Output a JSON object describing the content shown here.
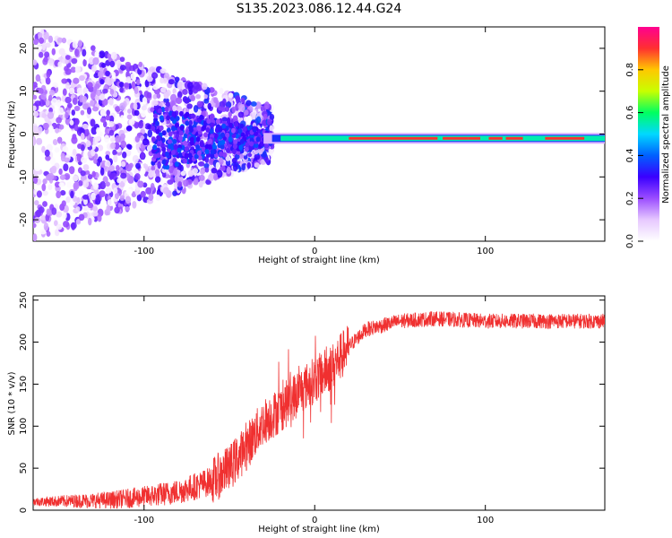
{
  "title": "S135.2023.086.12.44.G24",
  "chart_data": [
    {
      "type": "heatmap",
      "xlabel": "Height of straight line (km)",
      "ylabel": "Frequency (Hz)",
      "xlim": [
        -165,
        170
      ],
      "ylim": [
        -25,
        25
      ],
      "x_ticks": [
        -100,
        0,
        100
      ],
      "y_ticks": [
        -20,
        -10,
        0,
        10,
        20
      ],
      "colorbar": {
        "label": "Normalized spectral amplitude",
        "range": [
          0,
          1
        ],
        "ticks": [
          "0.0",
          "0.2",
          "0.4",
          "0.6",
          "0.8"
        ],
        "colormap": [
          "#ffffff",
          "#e6c8ff",
          "#9b4dff",
          "#3a00ff",
          "#0060ff",
          "#00d8ff",
          "#00ff60",
          "#c8ff00",
          "#ffc800",
          "#ff3030",
          "#ff0090"
        ]
      },
      "features": [
        {
          "x_range": [
            -165,
            -30
          ],
          "description_value": "scattered low-amplitude noise spread over full frequency band"
        },
        {
          "x_range": [
            -30,
            170
          ],
          "freq_center": -1,
          "amplitude": 0.95
        }
      ]
    },
    {
      "type": "line",
      "xlabel": "Height of straight line (km)",
      "ylabel": "SNR (10 * v/v)",
      "xlim": [
        -165,
        170
      ],
      "ylim": [
        0,
        255
      ],
      "x_ticks": [
        -100,
        0,
        100
      ],
      "y_ticks": [
        0,
        50,
        100,
        150,
        200,
        250
      ],
      "color": "#f03030",
      "envelope": {
        "x": [
          -165,
          -120,
          -100,
          -80,
          -60,
          -50,
          -40,
          -30,
          -20,
          -10,
          0,
          10,
          20,
          30,
          50,
          70,
          100,
          130,
          170
        ],
        "y": [
          10,
          12,
          16,
          22,
          35,
          50,
          75,
          105,
          120,
          140,
          155,
          170,
          195,
          215,
          225,
          228,
          225,
          225,
          225
        ]
      }
    }
  ]
}
